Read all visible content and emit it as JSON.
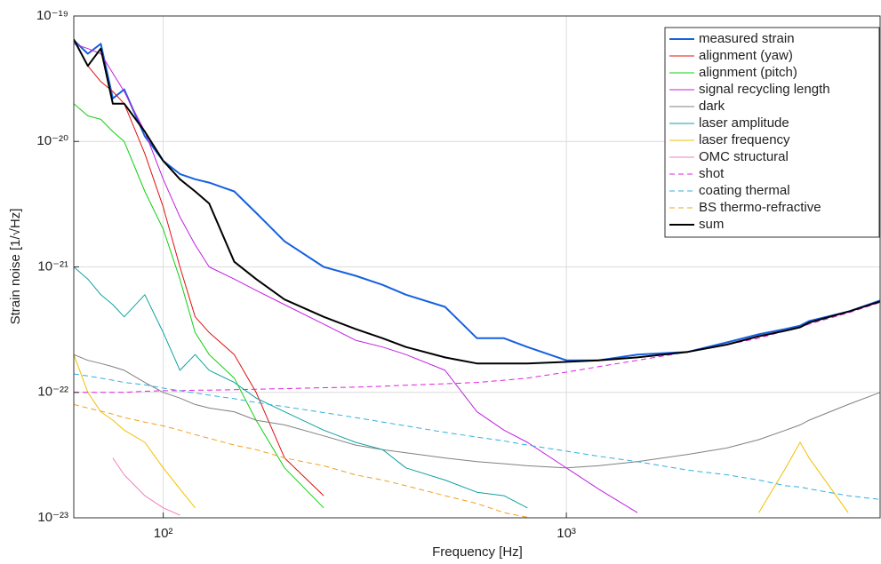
{
  "chart_data": {
    "type": "line",
    "xlabel": "Frequency  [Hz]",
    "ylabel": "Strain noise [1/√Hz]",
    "log_x": true,
    "log_y": true,
    "grid": true,
    "legend": "upper right",
    "xlim": [
      60,
      6000
    ],
    "ylim": [
      1e-23,
      1e-19
    ],
    "xticks": [
      {
        "value": 100,
        "label": "10²"
      },
      {
        "value": 1000,
        "label": "10³"
      }
    ],
    "yticks": [
      {
        "value": 1e-23,
        "label": "10⁻²³"
      },
      {
        "value": 1e-22,
        "label": "10⁻²²"
      },
      {
        "value": 1e-21,
        "label": "10⁻²¹"
      },
      {
        "value": 1e-20,
        "label": "10⁻²⁰"
      },
      {
        "value": 1e-19,
        "label": "10⁻¹⁹"
      }
    ],
    "x": [
      60,
      65,
      70,
      75,
      80,
      90,
      100,
      110,
      120,
      130,
      150,
      170,
      200,
      250,
      300,
      350,
      400,
      500,
      600,
      700,
      800,
      1000,
      1200,
      1500,
      2000,
      2500,
      3000,
      3500,
      3800,
      4000,
      5000,
      6000
    ],
    "series": [
      {
        "name": "measured strain",
        "color": "#1660e0",
        "line_width": 2,
        "dashed": false,
        "values": [
          6.4e-20,
          5e-20,
          6e-20,
          2.2e-20,
          2.6e-20,
          1.1e-20,
          7e-21,
          5.5e-21,
          5e-21,
          4.7e-21,
          4e-21,
          2.7e-21,
          1.6e-21,
          1e-21,
          8.5e-22,
          7.2e-22,
          6e-22,
          4.8e-22,
          2.7e-22,
          2.7e-22,
          2.3e-22,
          1.8e-22,
          1.8e-22,
          2e-22,
          2.1e-22,
          2.5e-22,
          2.9e-22,
          3.2e-22,
          3.4e-22,
          3.7e-22,
          4.4e-22,
          5.4e-22
        ]
      },
      {
        "name": "alignment (yaw)",
        "color": "#e01010",
        "line_width": 1,
        "dashed": false,
        "values": [
          6.5e-20,
          4e-20,
          3e-20,
          2.5e-20,
          2e-20,
          8e-21,
          3e-21,
          1e-21,
          4e-22,
          3e-22,
          2e-22,
          1e-22,
          3e-23,
          1.5e-23,
          null,
          null,
          null,
          null,
          null,
          null,
          null,
          null,
          null,
          null,
          null,
          null,
          null,
          null,
          null,
          null,
          null,
          null
        ]
      },
      {
        "name": "alignment (pitch)",
        "color": "#10d010",
        "line_width": 1,
        "dashed": false,
        "values": [
          2e-20,
          1.6e-20,
          1.5e-20,
          1.2e-20,
          1e-20,
          4e-21,
          2e-21,
          8e-22,
          3e-22,
          2e-22,
          1.3e-22,
          6e-23,
          2.5e-23,
          1.2e-23,
          null,
          null,
          null,
          null,
          null,
          null,
          null,
          null,
          null,
          null,
          null,
          null,
          null,
          null,
          null,
          null,
          null,
          null
        ]
      },
      {
        "name": "signal recycling length",
        "color": "#c020e0",
        "line_width": 1,
        "dashed": false,
        "values": [
          6e-20,
          5.5e-20,
          5e-20,
          3.5e-20,
          2.5e-20,
          1.2e-20,
          5e-21,
          2.5e-21,
          1.5e-21,
          1e-21,
          8e-22,
          6.5e-22,
          5e-22,
          3.5e-22,
          2.6e-22,
          2.3e-22,
          2e-22,
          1.5e-22,
          7e-23,
          5e-23,
          4e-23,
          2.5e-23,
          1.7e-23,
          1.1e-23,
          null,
          null,
          null,
          null,
          null,
          null,
          null,
          null
        ]
      },
      {
        "name": "dark",
        "color": "#808080",
        "line_width": 1,
        "dashed": false,
        "values": [
          2e-22,
          1.8e-22,
          1.7e-22,
          1.6e-22,
          1.5e-22,
          1.2e-22,
          1e-22,
          9e-23,
          8e-23,
          7.5e-23,
          7e-23,
          6e-23,
          5.5e-23,
          4.5e-23,
          3.8e-23,
          3.5e-23,
          3.3e-23,
          3e-23,
          2.8e-23,
          2.7e-23,
          2.6e-23,
          2.5e-23,
          2.6e-23,
          2.8e-23,
          3.2e-23,
          3.6e-23,
          4.2e-23,
          5e-23,
          5.5e-23,
          6e-23,
          8e-23,
          1e-22
        ]
      },
      {
        "name": "laser amplitude",
        "color": "#10a0a0",
        "line_width": 1,
        "dashed": false,
        "values": [
          1e-21,
          8e-22,
          6e-22,
          5e-22,
          4e-22,
          6e-22,
          3e-22,
          1.5e-22,
          2e-22,
          1.5e-22,
          1.2e-22,
          9e-23,
          7e-23,
          5e-23,
          4e-23,
          3.5e-23,
          2.5e-23,
          2e-23,
          1.6e-23,
          1.5e-23,
          1.2e-23,
          null,
          null,
          null,
          null,
          null,
          null,
          null,
          null,
          null,
          null,
          null
        ]
      },
      {
        "name": "laser frequency",
        "color": "#f0c000",
        "line_width": 1,
        "dashed": false,
        "values": [
          2e-22,
          1e-22,
          7e-23,
          6e-23,
          5e-23,
          4e-23,
          2.5e-23,
          1.7e-23,
          1.2e-23,
          null,
          null,
          null,
          null,
          null,
          null,
          null,
          null,
          null,
          null,
          null,
          null,
          null,
          null,
          null,
          null,
          null,
          1.1e-23,
          2.5e-23,
          4e-23,
          3e-23,
          1.1e-23,
          null
        ]
      },
      {
        "name": "OMC structural",
        "color": "#f080c0",
        "line_width": 1,
        "dashed": false,
        "values": [
          null,
          null,
          null,
          3e-23,
          2.2e-23,
          1.5e-23,
          1.2e-23,
          1.05e-23,
          null,
          null,
          null,
          null,
          null,
          null,
          null,
          null,
          null,
          null,
          null,
          null,
          null,
          null,
          null,
          null,
          null,
          null,
          null,
          null,
          null,
          null,
          null,
          null
        ]
      },
      {
        "name": "shot",
        "color": "#e020e0",
        "line_width": 1,
        "dashed": true,
        "values": [
          1e-22,
          1e-22,
          1e-22,
          1e-22,
          1e-22,
          1.02e-22,
          1.03e-22,
          1.03e-22,
          1.04e-22,
          1.04e-22,
          1.05e-22,
          1.06e-22,
          1.07e-22,
          1.09e-22,
          1.1e-22,
          1.12e-22,
          1.14e-22,
          1.17e-22,
          1.2e-22,
          1.25e-22,
          1.3e-22,
          1.45e-22,
          1.6e-22,
          1.8e-22,
          2.1e-22,
          2.4e-22,
          2.7e-22,
          3.1e-22,
          3.3e-22,
          3.5e-22,
          4.3e-22,
          5.2e-22
        ]
      },
      {
        "name": "coating thermal",
        "color": "#30b0e0",
        "line_width": 1,
        "dashed": true,
        "values": [
          1.4e-22,
          1.35e-22,
          1.3e-22,
          1.25e-22,
          1.2e-22,
          1.15e-22,
          1.08e-22,
          1.03e-22,
          9.9e-23,
          9.5e-23,
          8.9e-23,
          8.3e-23,
          7.7e-23,
          6.9e-23,
          6.3e-23,
          5.8e-23,
          5.4e-23,
          4.8e-23,
          4.4e-23,
          4.1e-23,
          3.8e-23,
          3.4e-23,
          3.1e-23,
          2.8e-23,
          2.4e-23,
          2.2e-23,
          2e-23,
          1.8e-23,
          1.76e-23,
          1.7e-23,
          1.5e-23,
          1.4e-23
        ]
      },
      {
        "name": "BS thermo-refractive",
        "color": "#f0a020",
        "line_width": 1,
        "dashed": true,
        "values": [
          8e-23,
          7.5e-23,
          7.1e-23,
          6.7e-23,
          6.3e-23,
          5.8e-23,
          5.4e-23,
          5e-23,
          4.6e-23,
          4.3e-23,
          3.8e-23,
          3.5e-23,
          3e-23,
          2.6e-23,
          2.2e-23,
          2e-23,
          1.8e-23,
          1.5e-23,
          1.3e-23,
          1.1e-23,
          1.01e-23,
          null,
          null,
          null,
          null,
          null,
          null,
          null,
          null,
          null,
          null,
          null
        ]
      },
      {
        "name": "sum",
        "color": "#000000",
        "line_width": 2,
        "dashed": false,
        "values": [
          6.5e-20,
          4e-20,
          5.5e-20,
          2e-20,
          2e-20,
          1.2e-20,
          7e-21,
          5e-21,
          4e-21,
          3.2e-21,
          1.1e-21,
          8e-22,
          5.5e-22,
          4e-22,
          3.2e-22,
          2.7e-22,
          2.3e-22,
          1.9e-22,
          1.7e-22,
          1.7e-22,
          1.7e-22,
          1.75e-22,
          1.8e-22,
          1.9e-22,
          2.1e-22,
          2.4e-22,
          2.8e-22,
          3.1e-22,
          3.3e-22,
          3.6e-22,
          4.4e-22,
          5.3e-22
        ]
      }
    ]
  }
}
